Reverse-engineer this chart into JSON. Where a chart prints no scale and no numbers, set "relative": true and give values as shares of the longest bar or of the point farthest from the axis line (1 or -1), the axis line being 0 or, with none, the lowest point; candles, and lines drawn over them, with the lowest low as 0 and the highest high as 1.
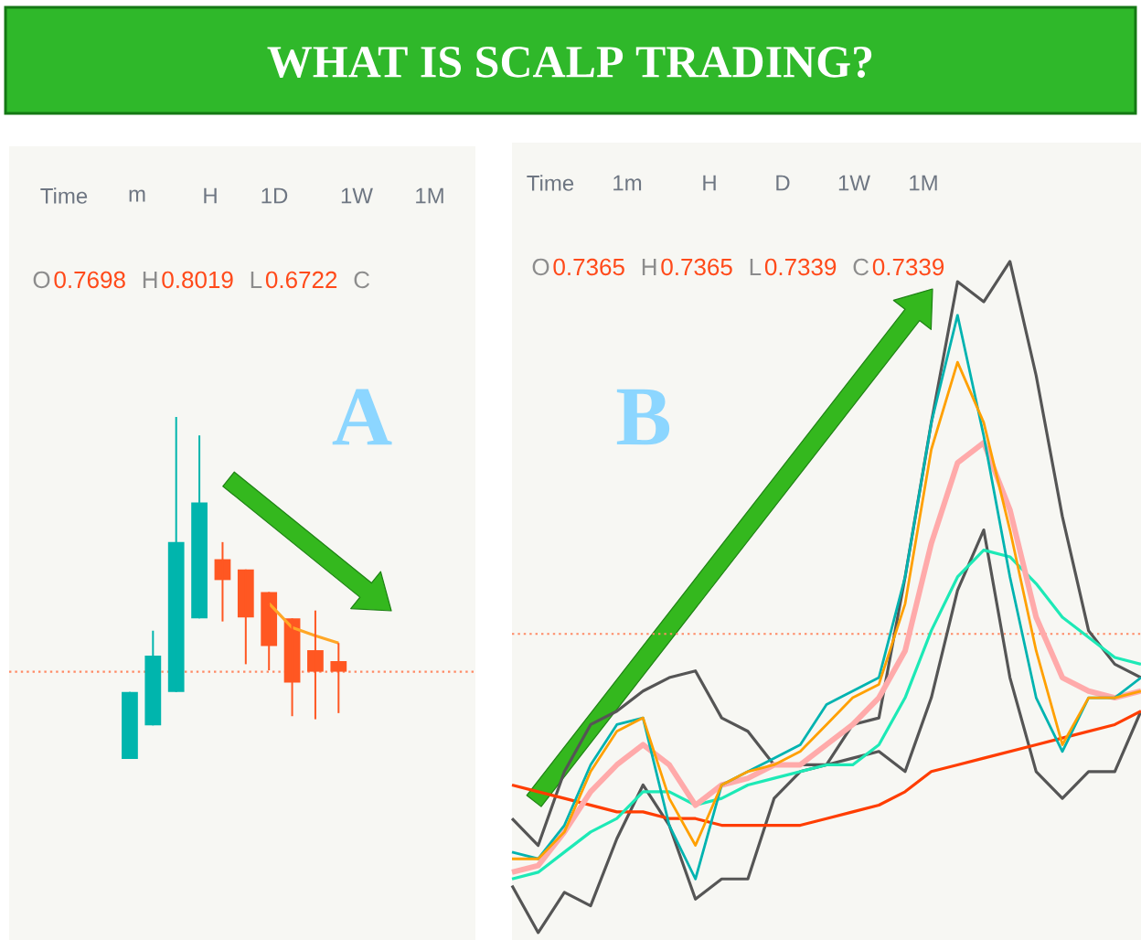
{
  "chart_data": [
    {
      "type": "candlestick",
      "title": "WHAT IS SCALP TRADING?",
      "relative": true,
      "categories": [
        null,
        null,
        null,
        null,
        null,
        null,
        null,
        null,
        null,
        null
      ],
      "ohlc": [
        [
          0,
          0.196,
          0,
          0.196
        ],
        [
          0.098,
          0.375,
          0.098,
          0.302
        ],
        [
          0.196,
          1,
          0.196,
          0.634
        ],
        [
          0.411,
          0.946,
          0.411,
          0.75
        ],
        [
          0.584,
          0.634,
          0.402,
          0.523
        ],
        [
          0.554,
          0.554,
          0.277,
          0.414
        ],
        [
          0.488,
          0.488,
          0.259,
          0.33
        ],
        [
          0.411,
          0.411,
          0.125,
          0.223
        ],
        [
          0.318,
          0.434,
          0.116,
          0.255
        ],
        [
          0.286,
          0.339,
          0.134,
          0.255
        ]
      ],
      "colors": [
        "#00b5ad",
        "#00b5ad",
        "#00b5ad",
        "#00b5ad",
        "#ff5722",
        "#ff5722",
        "#ff5722",
        "#ff5722",
        "#ff5722",
        "#ff5722"
      ],
      "series": [
        {
          "type": "line",
          "color": "#ffa726",
          "values": [
            null,
            null,
            null,
            null,
            null,
            null,
            0.455,
            0.384,
            0.36,
            0.339
          ]
        }
      ],
      "ref_lines": [
        {
          "axis": "y",
          "value": 0.255,
          "color": "#ff8a65",
          "line_style": "dotted"
        }
      ],
      "annotations": [
        "Time",
        "m",
        "H",
        "1D",
        "1W",
        "1M",
        "O",
        "0.7698",
        "H",
        "0.8019",
        "L",
        "0.6722",
        "C",
        "A"
      ]
    },
    {
      "type": "line",
      "relative": true,
      "categories": [
        null,
        null,
        null,
        null,
        null,
        null,
        null,
        null,
        null,
        null,
        null,
        null,
        null,
        null,
        null,
        null,
        null,
        null,
        null,
        null,
        null,
        null,
        null,
        null,
        null
      ],
      "series": [
        {
          "color": "#555555",
          "values": [
            0.17,
            0.13,
            0.24,
            0.31,
            0.33,
            0.36,
            0.38,
            0.39,
            0.32,
            0.3,
            0.25,
            0.25,
            0.25,
            0.31,
            0.32,
            0.53,
            0.76,
            0.97,
            0.94,
            1.0,
            0.83,
            0.62,
            0.45,
            0.4,
            0.38
          ]
        },
        {
          "color": "#555555",
          "values": [
            0.07,
            0,
            0.06,
            0.04,
            0.14,
            0.22,
            0.16,
            0.05,
            0.08,
            0.08,
            0.2,
            0.24,
            0.25,
            0.26,
            0.27,
            0.24,
            0.35,
            0.51,
            0.6,
            0.38,
            0.24,
            0.2,
            0.24,
            0.24,
            0.33
          ]
        },
        {
          "color": "#ff3d00",
          "values": [
            0.22,
            0.21,
            0.2,
            0.19,
            0.18,
            0.18,
            0.17,
            0.17,
            0.16,
            0.16,
            0.16,
            0.16,
            0.17,
            0.18,
            0.19,
            0.21,
            0.24,
            0.25,
            0.26,
            0.27,
            0.28,
            0.29,
            0.3,
            0.31,
            0.33
          ]
        },
        {
          "color": "#1de9b6",
          "values": [
            0.08,
            0.09,
            0.12,
            0.15,
            0.17,
            0.21,
            0.21,
            0.19,
            0.2,
            0.22,
            0.23,
            0.24,
            0.25,
            0.25,
            0.28,
            0.35,
            0.45,
            0.53,
            0.57,
            0.56,
            0.52,
            0.47,
            0.44,
            0.41,
            0.4
          ]
        },
        {
          "color": "#ffaaaa",
          "values": [
            0.09,
            0.1,
            0.15,
            0.21,
            0.25,
            0.28,
            0.25,
            0.19,
            0.22,
            0.23,
            0.25,
            0.25,
            0.28,
            0.31,
            0.35,
            0.42,
            0.58,
            0.7,
            0.73,
            0.63,
            0.47,
            0.38,
            0.36,
            0.35,
            0.36
          ]
        },
        {
          "color": "#00b3b0",
          "values": [
            0.12,
            0.11,
            0.16,
            0.25,
            0.31,
            0.32,
            0.16,
            0.08,
            0.22,
            0.24,
            0.26,
            0.28,
            0.34,
            0.36,
            0.38,
            0.53,
            0.76,
            0.92,
            0.74,
            0.53,
            0.35,
            0.27,
            0.35,
            0.35,
            0.38
          ]
        },
        {
          "color": "#ffa000",
          "values": [
            0.11,
            0.11,
            0.15,
            0.24,
            0.3,
            0.32,
            0.2,
            0.13,
            0.22,
            0.24,
            0.25,
            0.27,
            0.31,
            0.35,
            0.37,
            0.49,
            0.72,
            0.85,
            0.76,
            0.6,
            0.42,
            0.28,
            0.35,
            0.35,
            0.36
          ]
        }
      ],
      "ref_lines": [
        {
          "axis": "y",
          "value": 0.445,
          "color": "#ff8a65",
          "line_style": "dotted"
        }
      ],
      "annotations": [
        "Time",
        "1m",
        "H",
        "D",
        "1W",
        "1M",
        "O",
        "0.7365",
        "H",
        "0.7365",
        "L",
        "0.7339",
        "C",
        "0.7339",
        "B"
      ]
    }
  ]
}
